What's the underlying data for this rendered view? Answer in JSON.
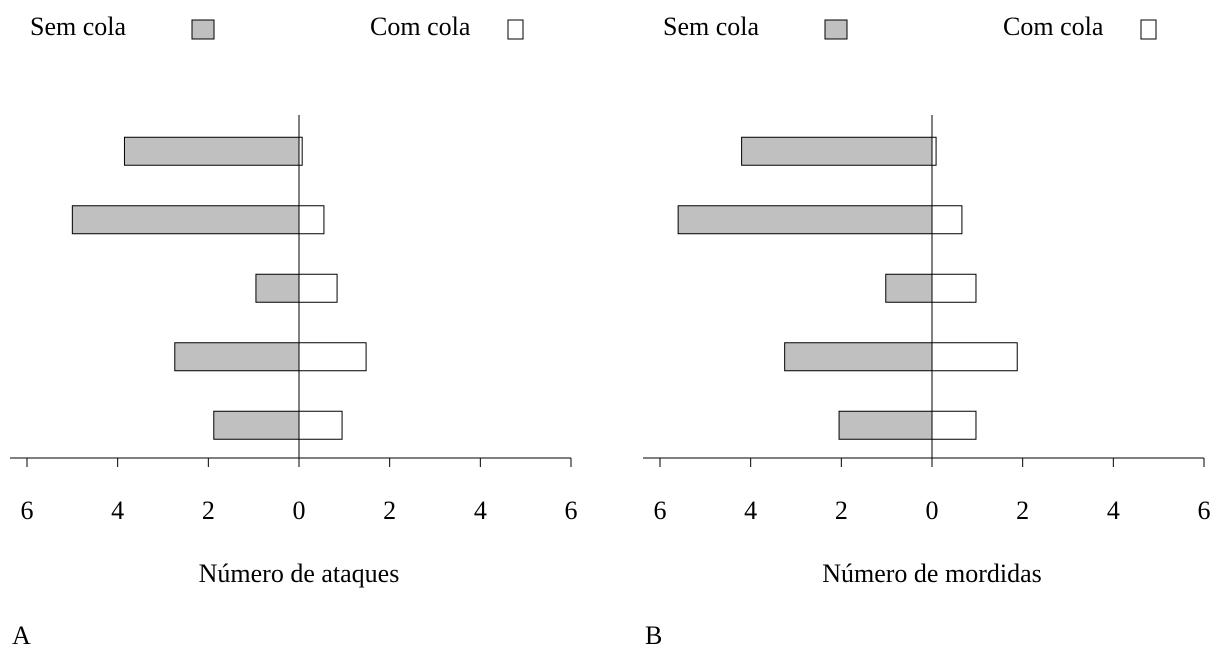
{
  "chart_data": [
    {
      "type": "bar",
      "orientation": "horizontal",
      "label": "A",
      "xlabel": "Número de ataques",
      "categories": [
        null,
        null,
        null,
        null,
        null
      ],
      "series": [
        {
          "name": "Sem cola",
          "color": "#c0c0c0",
          "values": [
            -3.85,
            -5.0,
            -0.95,
            -2.74,
            -1.88
          ]
        },
        {
          "name": "Com cola",
          "color": "#ffffff",
          "values": [
            0.07,
            0.55,
            0.84,
            1.48,
            0.95
          ]
        }
      ],
      "xlim": [
        -6,
        6
      ],
      "xticks": [
        {
          "value": -6,
          "label": "6"
        },
        {
          "value": -4,
          "label": "4"
        },
        {
          "value": -2,
          "label": "2"
        },
        0,
        2,
        4,
        6
      ]
    },
    {
      "type": "bar",
      "orientation": "horizontal",
      "label": "B",
      "xlabel": "Número de mordidas",
      "categories": [
        null,
        null,
        null,
        null,
        null
      ],
      "series": [
        {
          "name": "Sem cola",
          "color": "#c0c0c0",
          "values": [
            -4.2,
            -5.6,
            -1.02,
            -3.25,
            -2.05
          ]
        },
        {
          "name": "Com cola",
          "color": "#ffffff",
          "values": [
            0.09,
            0.66,
            0.97,
            1.88,
            0.97
          ]
        }
      ],
      "xlim": [
        -6,
        6
      ],
      "xticks": [
        {
          "value": -6,
          "label": "6"
        },
        {
          "value": -4,
          "label": "4"
        },
        {
          "value": -2,
          "label": "2"
        },
        0,
        2,
        4,
        6
      ]
    }
  ]
}
